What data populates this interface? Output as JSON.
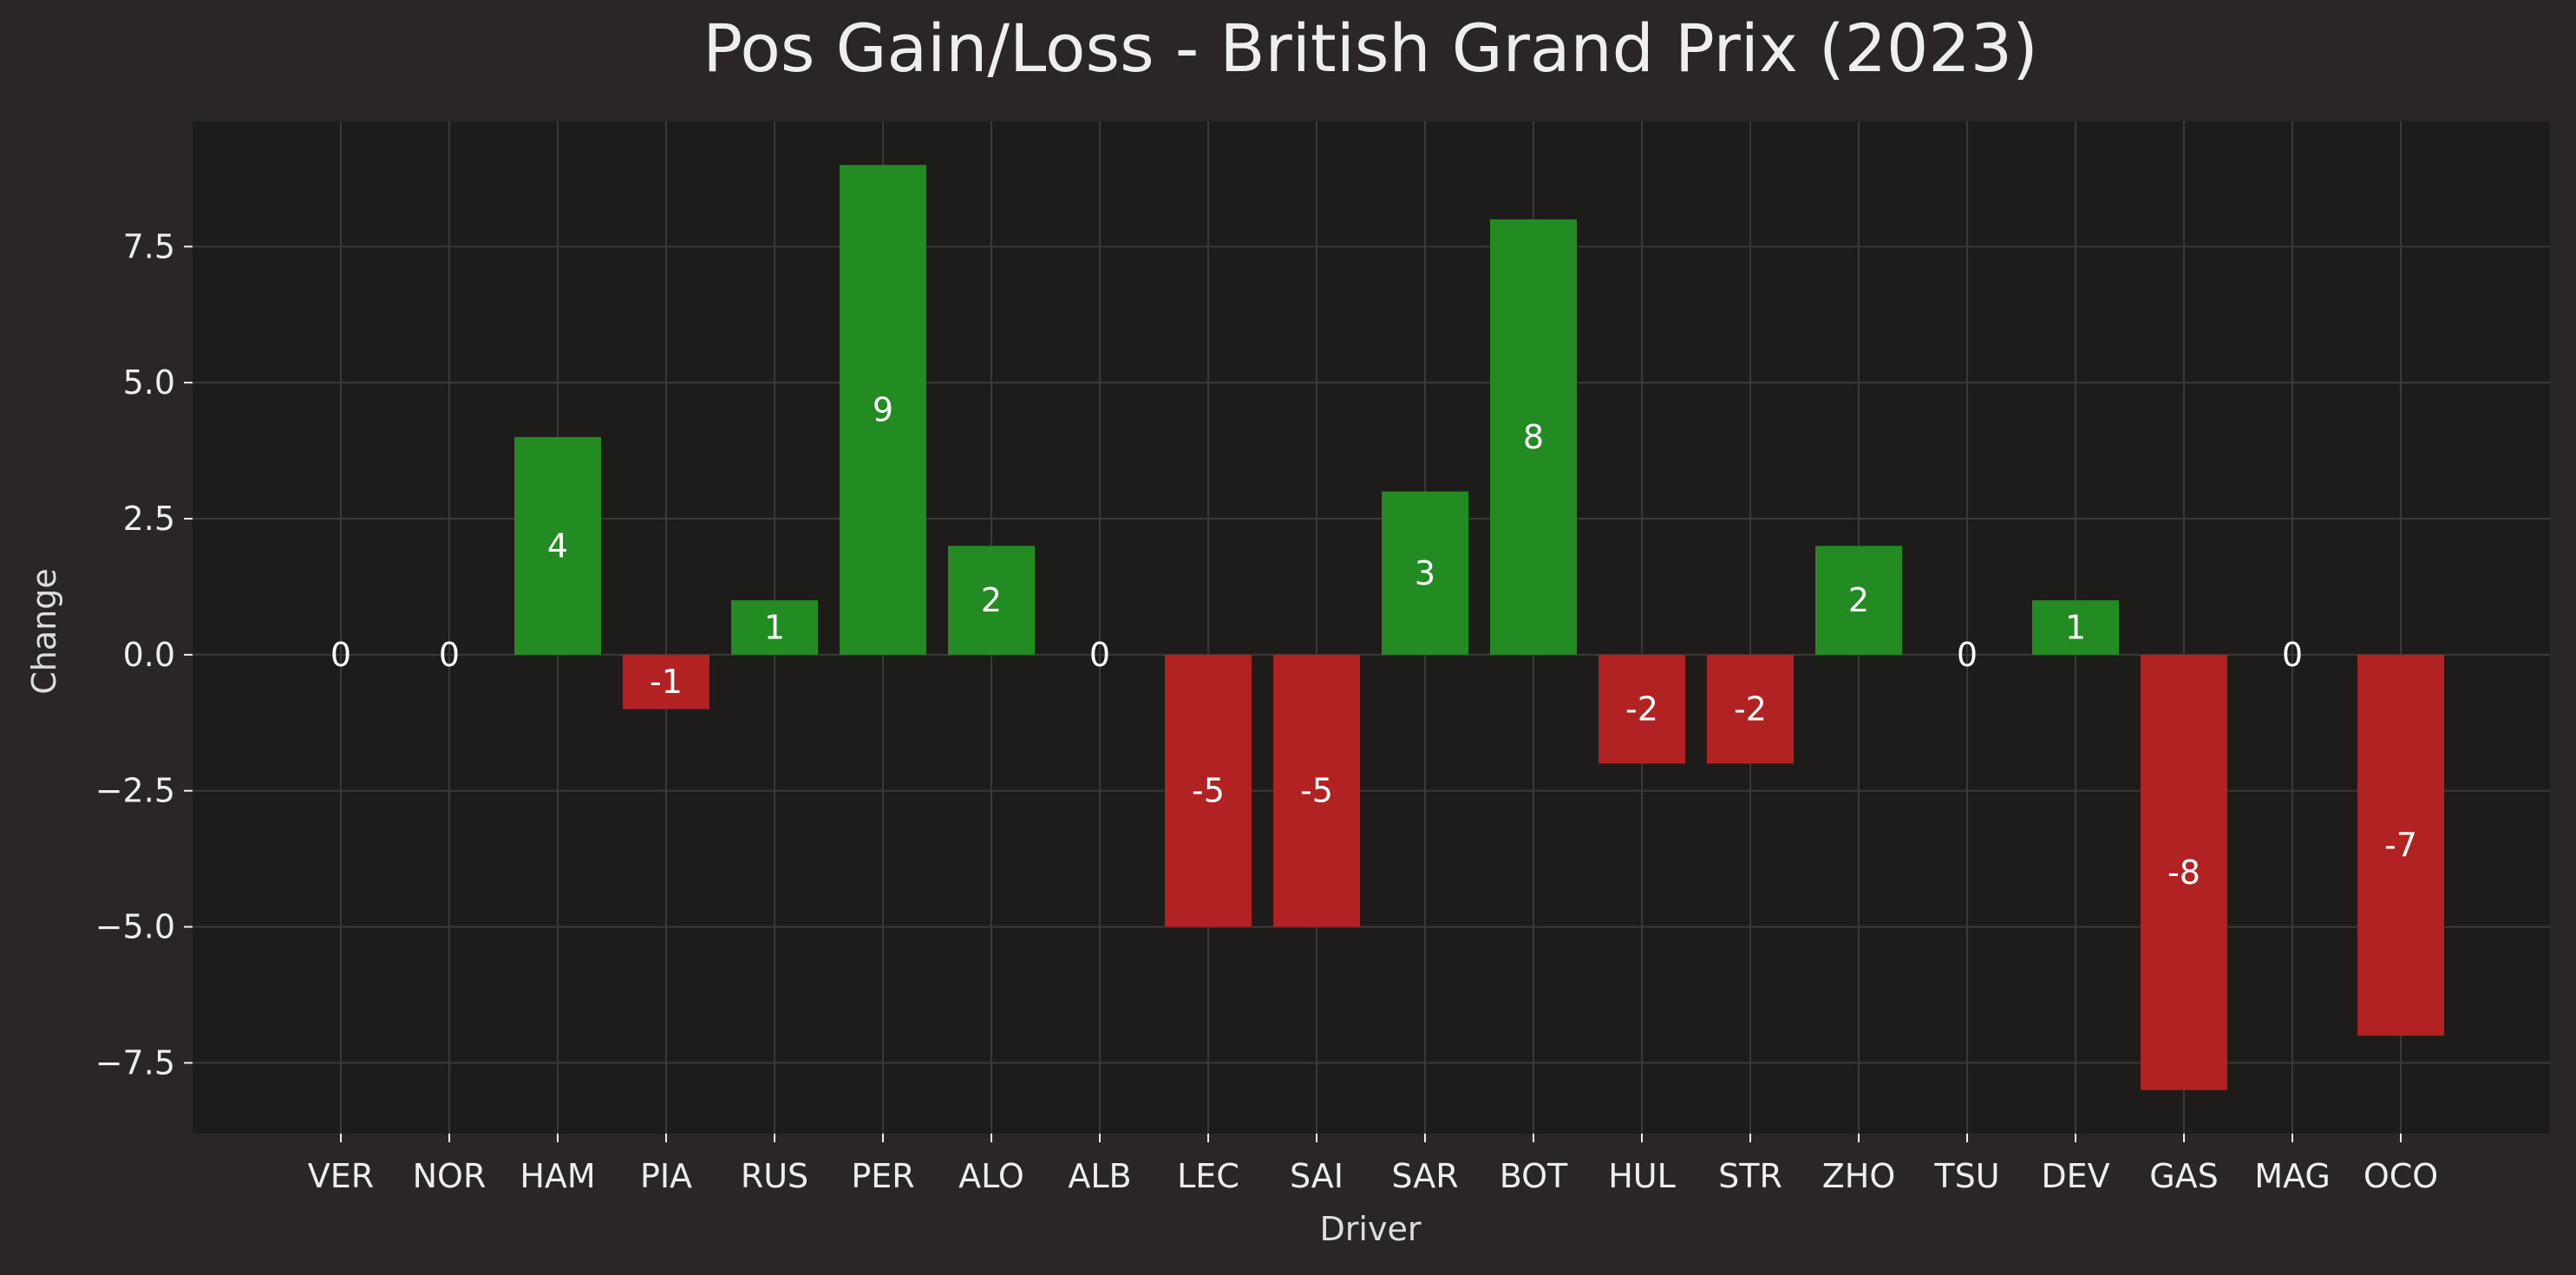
{
  "chart_data": {
    "type": "bar",
    "title": "Pos Gain/Loss - British Grand Prix (2023)",
    "xlabel": "Driver",
    "ylabel": "Change",
    "categories": [
      "VER",
      "NOR",
      "HAM",
      "PIA",
      "RUS",
      "PER",
      "ALO",
      "ALB",
      "LEC",
      "SAI",
      "SAR",
      "BOT",
      "HUL",
      "STR",
      "ZHO",
      "TSU",
      "DEV",
      "GAS",
      "MAG",
      "OCO"
    ],
    "values": [
      0,
      0,
      4,
      -1,
      1,
      9,
      2,
      0,
      -5,
      -5,
      3,
      8,
      -2,
      -2,
      2,
      0,
      1,
      -8,
      0,
      -7
    ],
    "data_labels": [
      "0",
      "0",
      "4",
      "-1",
      "1",
      "9",
      "2",
      "0",
      "-5",
      "-5",
      "3",
      "8",
      "-2",
      "-2",
      "2",
      "0",
      "1",
      "-8",
      "0",
      "-7"
    ],
    "ylim": [
      -8.8,
      9.8
    ],
    "yticks": [
      -7.5,
      -5.0,
      -2.5,
      0.0,
      2.5,
      5.0,
      7.5
    ],
    "ytick_labels": [
      "−7.5",
      "−5.0",
      "−2.5",
      "0.0",
      "2.5",
      "5.0",
      "7.5"
    ],
    "grid": true,
    "colors": {
      "positive": "#228b22",
      "negative": "#b22222",
      "figure_background": "#2a2626",
      "plot_background": "#1e1c1b",
      "grid": "#3a3838",
      "text": "#eeeeee"
    }
  }
}
